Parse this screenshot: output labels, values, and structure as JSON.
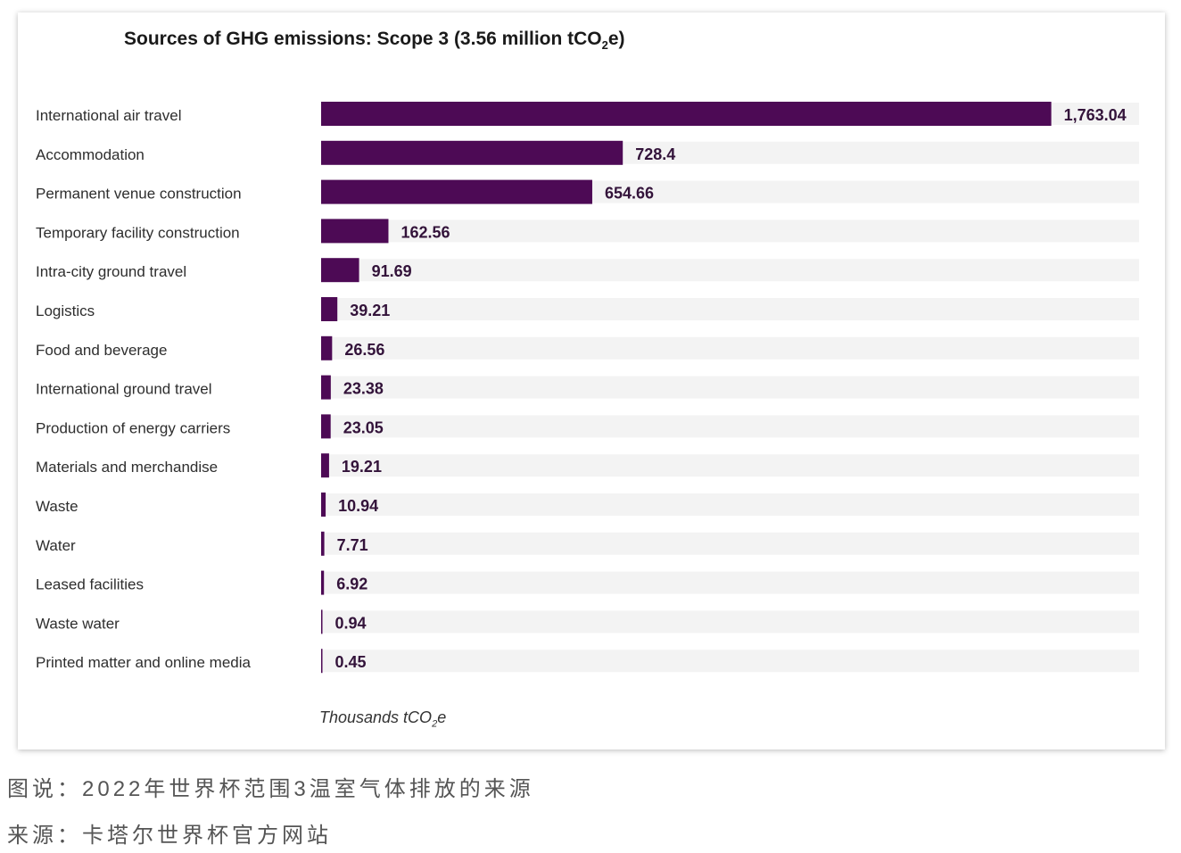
{
  "chart_data": {
    "type": "bar",
    "orientation": "horizontal",
    "title": {
      "prefix": "Sources of GHG emissions: Scope 3 (3.56 million tCO",
      "subscript": "2",
      "suffix": "e)"
    },
    "unit_label": {
      "prefix": "Thousands tCO",
      "subscript": "2",
      "suffix": "e"
    },
    "categories": [
      "International air travel",
      "Accommodation",
      "Permanent venue construction",
      "Temporary facility construction",
      "Intra-city ground travel",
      "Logistics",
      "Food and beverage",
      "International ground travel",
      "Production of energy carriers",
      "Materials and merchandise",
      "Waste",
      "Water",
      "Leased facilities",
      "Waste water",
      "Printed matter and online media"
    ],
    "values": [
      1763.04,
      728.4,
      654.66,
      162.56,
      91.69,
      39.21,
      26.56,
      23.38,
      23.05,
      19.21,
      10.94,
      7.71,
      6.92,
      0.94,
      0.45
    ],
    "value_labels": [
      "1,763.04",
      "728.4",
      "654.66",
      "162.56",
      "91.69",
      "39.21",
      "26.56",
      "23.38",
      "23.05",
      "19.21",
      "10.94",
      "7.71",
      "6.92",
      "0.94",
      "0.45"
    ],
    "xlim": [
      0,
      1975
    ],
    "grid": false,
    "legend": "none",
    "colors": {
      "bar": "#4d0a55",
      "track": "#f3f3f3",
      "label": "#2e2e2e",
      "value": "#33133a"
    }
  },
  "captions": {
    "line1": "图说：2022年世界杯范围3温室气体排放的来源",
    "line2": "来源：卡塔尔世界杯官方网站"
  }
}
